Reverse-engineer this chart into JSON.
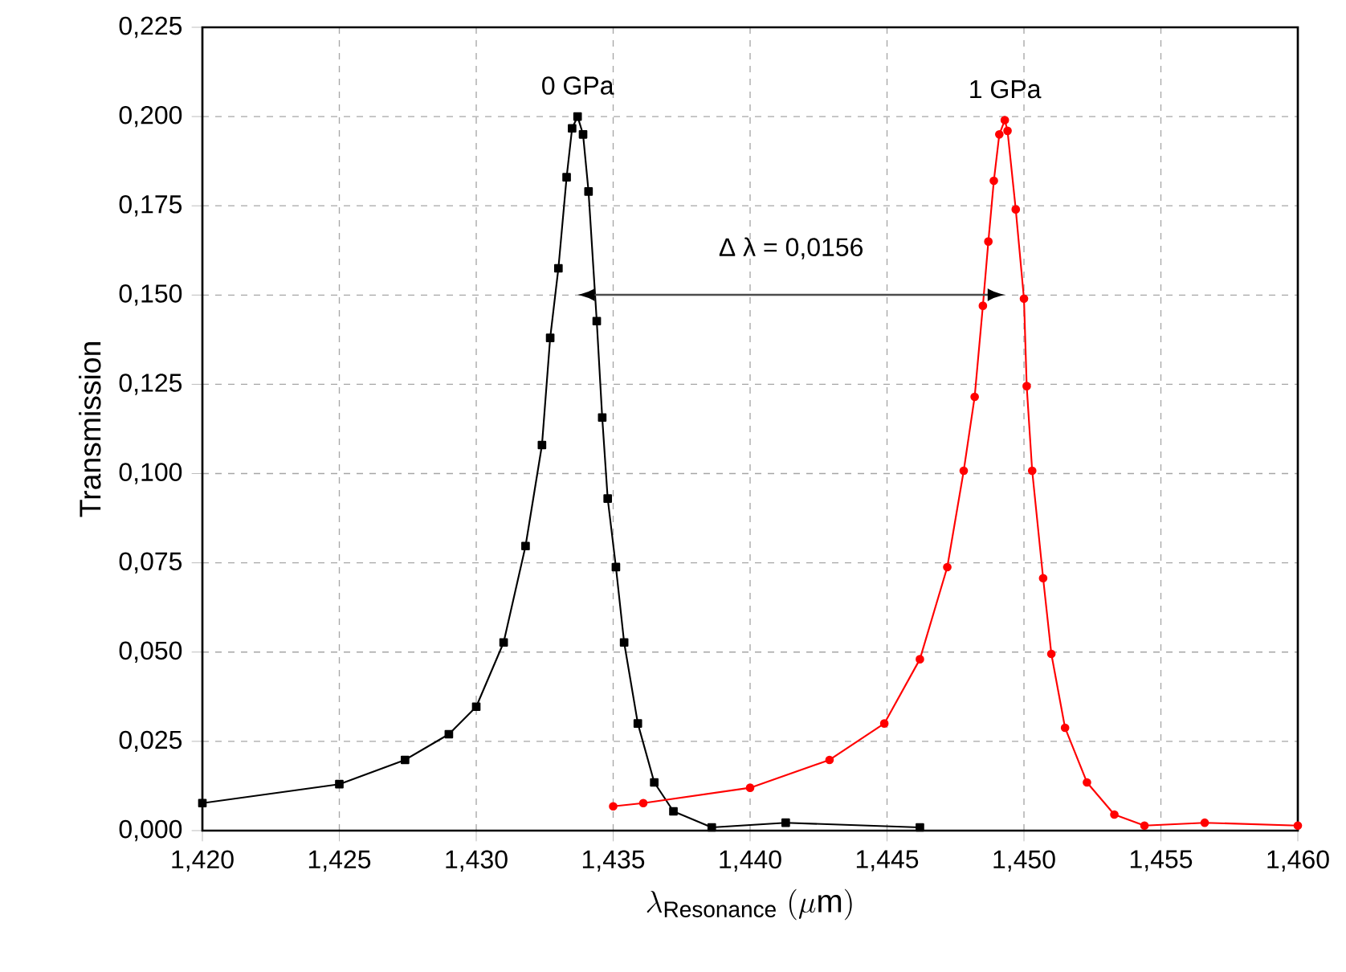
{
  "chart_data": {
    "type": "line",
    "xlabel": "\\lambda_{\\mathrm{Resonance}}\\;(\\mu\\mathrm{m})",
    "ylabel": "Transmission",
    "xlim": [
      1.42,
      1.46
    ],
    "xticks": [
      {
        "value": 1.42,
        "label": "1,420"
      },
      {
        "value": 1.425,
        "label": "1,425"
      },
      {
        "value": 1.43,
        "label": "1,430"
      },
      {
        "value": 1.435,
        "label": "1,435"
      },
      {
        "value": 1.44,
        "label": "1,440"
      },
      {
        "value": 1.445,
        "label": "1,445"
      },
      {
        "value": 1.45,
        "label": "1,450"
      },
      {
        "value": 1.455,
        "label": "1,455"
      },
      {
        "value": 1.46,
        "label": "1,460"
      }
    ],
    "ylim": [
      0,
      0.225
    ],
    "yticks": [
      {
        "value": 0,
        "label": "0,000"
      },
      {
        "value": 0.025,
        "label": "0,025"
      },
      {
        "value": 0.05,
        "label": "0,050"
      },
      {
        "value": 0.075,
        "label": "0,075"
      },
      {
        "value": 0.1,
        "label": "0,100"
      },
      {
        "value": 0.125,
        "label": "0,125"
      },
      {
        "value": 0.15,
        "label": "0,150"
      },
      {
        "value": 0.175,
        "label": "0,175"
      },
      {
        "value": 0.2,
        "label": "0,200"
      },
      {
        "value": 0.225,
        "label": "0,225"
      }
    ],
    "grid": true,
    "series": [
      {
        "color": "#000000",
        "marker": "square",
        "x": [
          1.42,
          1.425,
          1.4274,
          1.429,
          1.43,
          1.431,
          1.4318,
          1.4324,
          1.4327,
          1.433,
          1.4333,
          1.4335,
          1.4337,
          1.4339,
          1.4341,
          1.4344,
          1.4346,
          1.4348,
          1.4351,
          1.4354,
          1.4359,
          1.4365,
          1.4372,
          1.4386,
          1.4413,
          1.4462
        ],
        "values": [
          0.0077,
          0.013,
          0.0198,
          0.027,
          0.0347,
          0.0527,
          0.0797,
          0.108,
          0.138,
          0.1575,
          0.183,
          0.1967,
          0.2,
          0.195,
          0.179,
          0.1427,
          0.1157,
          0.093,
          0.0738,
          0.0527,
          0.03,
          0.0135,
          0.0054,
          0.0009,
          0.0022,
          0.0009
        ]
      },
      {
        "color": "#ff0000",
        "marker": "circle",
        "x": [
          1.435,
          1.4361,
          1.44,
          1.4429,
          1.4449,
          1.4462,
          1.4472,
          1.4478,
          1.4482,
          1.4485,
          1.4487,
          1.4489,
          1.4491,
          1.4493,
          1.4494,
          1.4497,
          1.45,
          1.4501,
          1.4503,
          1.4507,
          1.451,
          1.4515,
          1.4523,
          1.4533,
          1.4544,
          1.4566,
          1.46
        ],
        "values": [
          0.0068,
          0.0077,
          0.012,
          0.0198,
          0.03,
          0.048,
          0.0738,
          0.1008,
          0.1215,
          0.147,
          0.165,
          0.182,
          0.195,
          0.199,
          0.196,
          0.174,
          0.149,
          0.1245,
          0.1008,
          0.0707,
          0.0495,
          0.0288,
          0.0135,
          0.0045,
          0.0014,
          0.0022,
          0.0014
        ]
      }
    ],
    "annotations": [
      {
        "text": "0 GPa",
        "x": 1.4337,
        "y": 0.2
      },
      {
        "text": "1 GPa",
        "x": 1.4493,
        "y": 0.199
      },
      "Δ λ = 0,0156"
    ]
  }
}
